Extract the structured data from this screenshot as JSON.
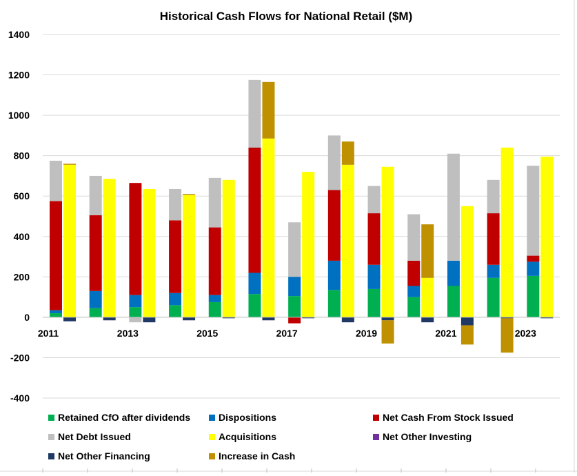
{
  "chart_data": {
    "type": "bar",
    "subtype": "stacked-pairs",
    "title": "Historical Cash Flows for National Retail ($M)",
    "xlabel": "",
    "ylabel": "",
    "ylim": [
      -400,
      1400
    ],
    "y_ticks": [
      -400,
      -200,
      0,
      200,
      400,
      600,
      800,
      1000,
      1200,
      1400
    ],
    "grid": true,
    "legend_position": "bottom",
    "years": [
      2011,
      2012,
      2013,
      2014,
      2015,
      2016,
      2017,
      2018,
      2019,
      2020,
      2021,
      2022,
      2023
    ],
    "x_tick_labels": [
      "2011",
      "",
      "2013",
      "",
      "2015",
      "",
      "2017",
      "",
      "2019",
      "",
      "2021",
      "",
      "2023"
    ],
    "sources_bar": {
      "description_series": [
        "Retained CfO after dividends",
        "Dispositions",
        "Net Cash From Stock Issued",
        "Net Debt Issued"
      ],
      "series": [
        {
          "name": "Retained CfO after dividends",
          "color": "#00b050",
          "values": [
            20,
            45,
            50,
            60,
            75,
            115,
            105,
            135,
            140,
            100,
            155,
            195,
            205
          ]
        },
        {
          "name": "Dispositions",
          "color": "#0070c0",
          "values": [
            15,
            85,
            60,
            60,
            35,
            105,
            95,
            145,
            120,
            55,
            125,
            65,
            70
          ]
        },
        {
          "name": "Net Cash From Stock Issued",
          "color": "#c00000",
          "values": [
            540,
            375,
            555,
            360,
            335,
            620,
            -30,
            350,
            255,
            125,
            0,
            255,
            30
          ]
        },
        {
          "name": "Net Debt Issued",
          "color": "#bfbfbf",
          "values": [
            200,
            195,
            -25,
            155,
            245,
            335,
            270,
            270,
            135,
            230,
            530,
            165,
            445
          ]
        }
      ]
    },
    "uses_bar": {
      "series": [
        {
          "name": "Acquisitions",
          "color": "#ffff00",
          "values": [
            755,
            685,
            635,
            605,
            680,
            885,
            720,
            755,
            745,
            195,
            550,
            840,
            795
          ]
        },
        {
          "name": "Net Other Investing",
          "color": "#7030a0",
          "values": [
            0,
            0,
            0,
            0,
            0,
            0,
            0,
            0,
            0,
            0,
            0,
            0,
            0
          ]
        },
        {
          "name": "Net Other Financing",
          "color": "#1f3864",
          "values": [
            -20,
            -15,
            -25,
            -15,
            -5,
            -15,
            -5,
            -25,
            -15,
            -25,
            -40,
            -5,
            -5
          ]
        },
        {
          "name": "Increase in Cash",
          "color": "#bf9000",
          "values": [
            5,
            0,
            0,
            5,
            0,
            280,
            0,
            115,
            -115,
            265,
            -95,
            -170,
            0
          ]
        }
      ]
    },
    "legend": [
      {
        "name": "Retained CfO after dividends",
        "color": "#00b050"
      },
      {
        "name": "Dispositions",
        "color": "#0070c0"
      },
      {
        "name": "Net Cash From Stock Issued",
        "color": "#c00000"
      },
      {
        "name": "Net Debt Issued",
        "color": "#bfbfbf"
      },
      {
        "name": "Acquisitions",
        "color": "#ffff00"
      },
      {
        "name": "Net Other Investing",
        "color": "#7030a0"
      },
      {
        "name": "Net Other Financing",
        "color": "#1f3864"
      },
      {
        "name": "Increase in Cash",
        "color": "#bf9000"
      }
    ]
  }
}
